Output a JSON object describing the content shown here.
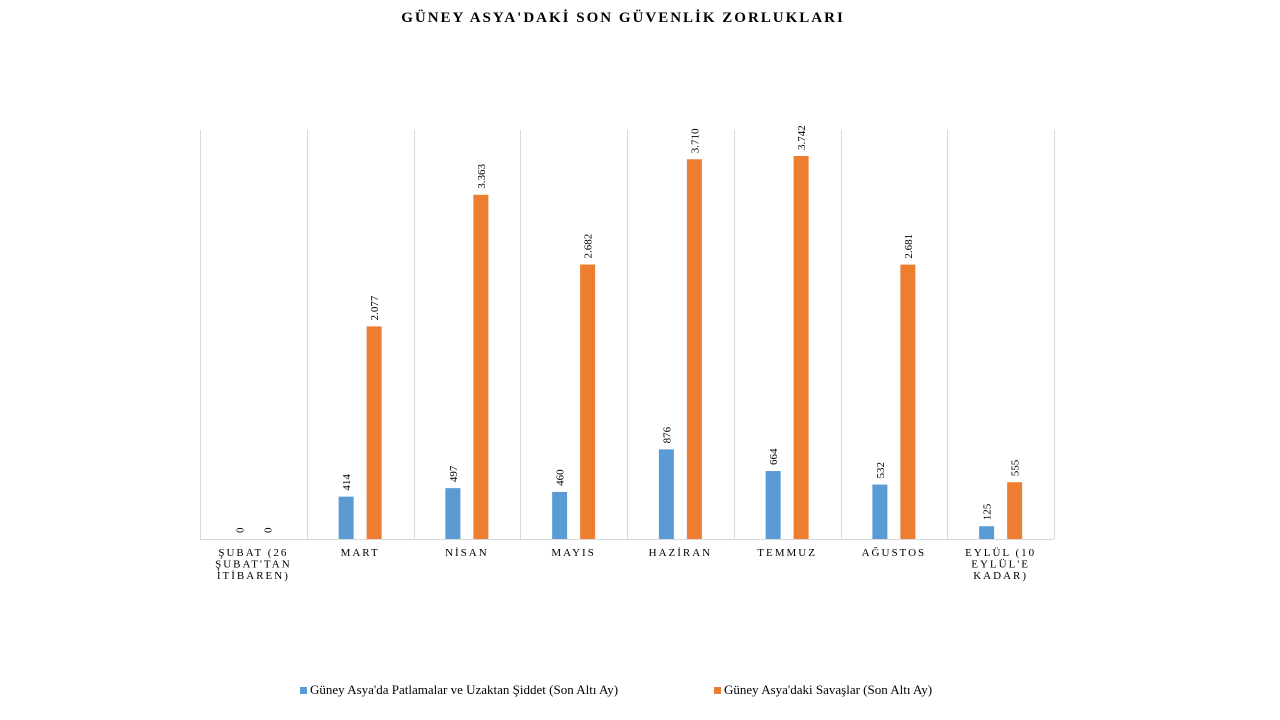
{
  "chart_data": {
    "type": "bar",
    "title": "GÜNEY ASYA'DAKİ SON GÜVENLİK ZORLUKLARI",
    "categories": [
      [
        "ŞUBAT (26",
        "ŞUBAT'TAN",
        "İTİBAREN)"
      ],
      [
        "MART"
      ],
      [
        "NİSAN"
      ],
      [
        "MAYIS"
      ],
      [
        "HAZİRAN"
      ],
      [
        "TEMMUZ"
      ],
      [
        "AĞUSTOS"
      ],
      [
        "EYLÜL (10",
        "EYLÜL'E",
        "KADAR)"
      ]
    ],
    "series": [
      {
        "name": "Güney Asya'da Patlamalar ve Uzaktan Şiddet (Son Altı Ay)",
        "color": "#5B9BD5",
        "values": [
          0,
          414,
          497,
          460,
          876,
          664,
          532,
          125
        ],
        "labels": [
          "0",
          "414",
          "497",
          "460",
          "876",
          "664",
          "532",
          "125"
        ]
      },
      {
        "name": "Güney Asya'daki Savaşlar (Son Altı Ay)",
        "color": "#ED7D31",
        "values": [
          0,
          2077,
          3363,
          2682,
          3710,
          3742,
          2681,
          555
        ],
        "labels": [
          "0",
          "2.077",
          "3.363",
          "2.682",
          "3.710",
          "3.742",
          "2.681",
          "555"
        ]
      }
    ],
    "ylim": [
      0,
      4000
    ],
    "grid": "vertical-separators",
    "legend_position": "bottom"
  }
}
